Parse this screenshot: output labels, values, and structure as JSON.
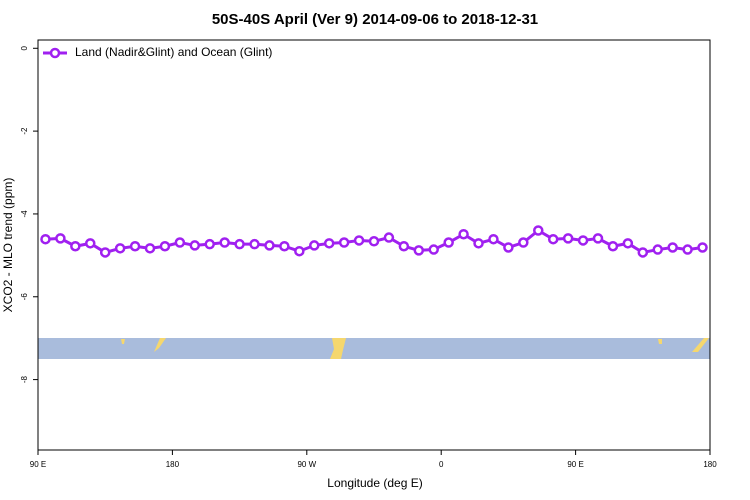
{
  "chart_data": {
    "type": "line",
    "title": "50S-40S April (Ver 9)   2014-09-06 to 2018-12-31",
    "x_label": "Longitude (deg E)",
    "y_label": "XCO2 - MLO trend (ppm)",
    "x": [
      95,
      105,
      115,
      125,
      135,
      145,
      155,
      165,
      175,
      185,
      195,
      205,
      215,
      225,
      235,
      245,
      255,
      265,
      275,
      285,
      295,
      305,
      315,
      325,
      335,
      345,
      355,
      365,
      375,
      385,
      395,
      405,
      415,
      425,
      435,
      445,
      455,
      465,
      475,
      485,
      495,
      505,
      515,
      525,
      535
    ],
    "series": [
      {
        "name": "Land (Nadir&Glint) and Ocean (Glint)",
        "color": "#a020f0",
        "values": [
          -4.61,
          -4.59,
          -4.78,
          -4.71,
          -4.93,
          -4.83,
          -4.78,
          -4.83,
          -4.78,
          -4.69,
          -4.76,
          -4.73,
          -4.69,
          -4.73,
          -4.73,
          -4.76,
          -4.78,
          -4.9,
          -4.76,
          -4.71,
          -4.69,
          -4.64,
          -4.66,
          -4.57,
          -4.78,
          -4.88,
          -4.86,
          -4.69,
          -4.49,
          -4.71,
          -4.61,
          -4.81,
          -4.69,
          -4.4,
          -4.61,
          -4.59,
          -4.64,
          -4.59,
          -4.78,
          -4.71,
          -4.93,
          -4.86,
          -4.81,
          -4.86,
          -4.81
        ]
      }
    ],
    "xlim": [
      90,
      540
    ],
    "xticks": [
      {
        "value": 90,
        "label": "90 E"
      },
      180,
      {
        "value": 270,
        "label": "90 W"
      },
      {
        "value": 360,
        "label": "0"
      },
      {
        "value": 450,
        "label": "90 E"
      },
      {
        "value": 540,
        "label": "180"
      }
    ],
    "ylim": [
      -9.7,
      0.2
    ],
    "yticks": [
      -8,
      -6,
      -4,
      -2,
      0
    ],
    "legend": "top-left"
  }
}
